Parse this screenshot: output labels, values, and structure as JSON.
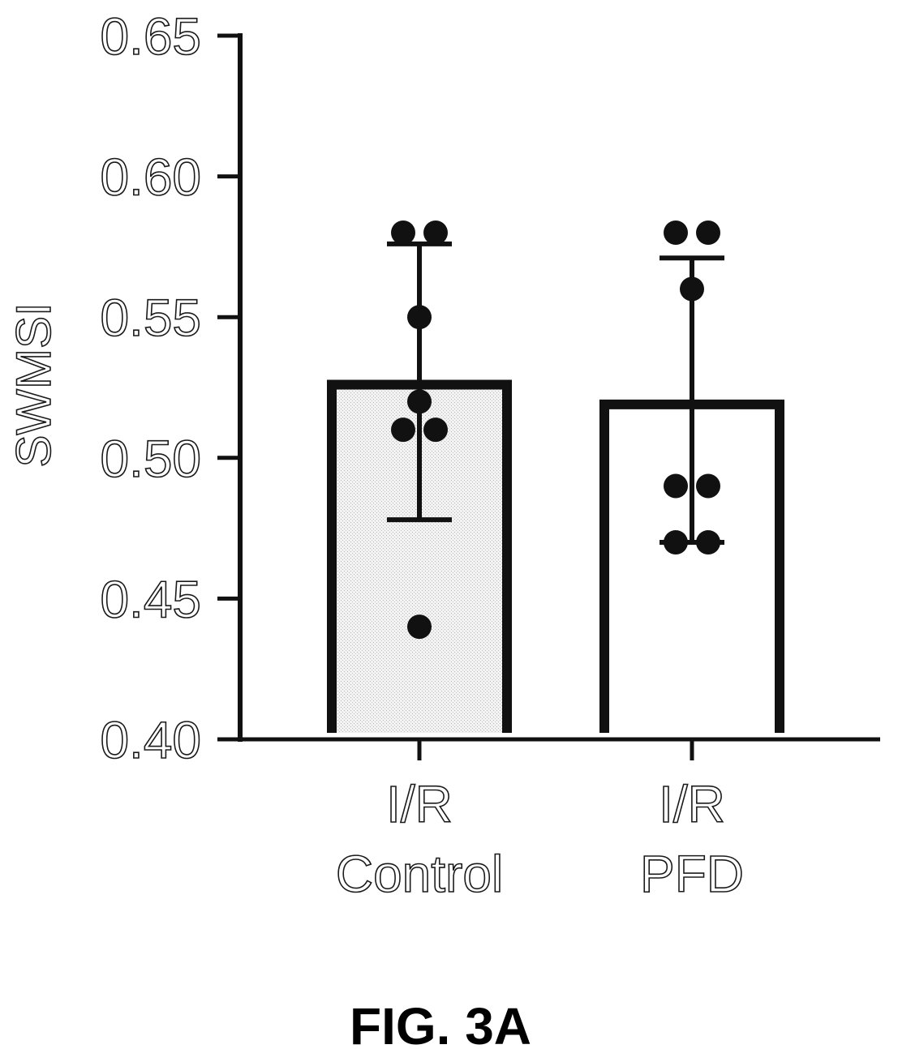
{
  "chart_data": {
    "type": "bar",
    "ylabel": "SWMSI",
    "ylim": [
      0.4,
      0.65
    ],
    "yticks": [
      "0.40",
      "0.45",
      "0.50",
      "0.55",
      "0.60",
      "0.65"
    ],
    "categories": [
      {
        "line1": "I/R",
        "line2": "Control"
      },
      {
        "line1": "I/R",
        "line2": "PFD"
      }
    ],
    "series": [
      {
        "values": [
          0.526,
          0.519
        ],
        "error_low": [
          0.478,
          0.47
        ],
        "error_high": [
          0.576,
          0.571
        ],
        "fills": [
          "stippled-gray",
          "white"
        ],
        "points": [
          [
            0.58,
            0.58,
            0.55,
            0.52,
            0.51,
            0.51,
            0.44
          ],
          [
            0.58,
            0.58,
            0.56,
            0.49,
            0.49,
            0.47,
            0.47
          ]
        ]
      }
    ],
    "grid": false,
    "legend": "none"
  },
  "figure_label": "FIG. 3A"
}
